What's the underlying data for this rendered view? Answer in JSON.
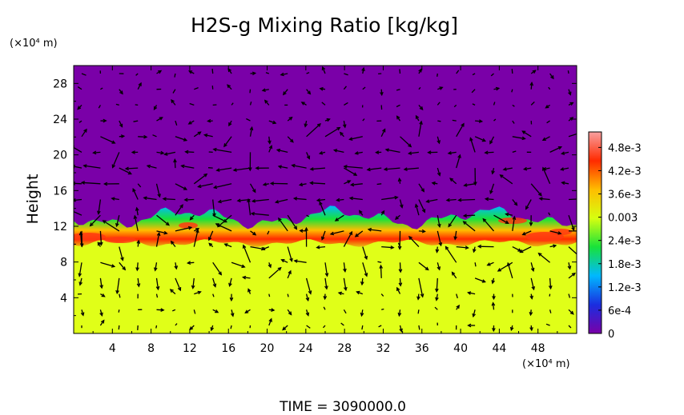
{
  "chart_data": {
    "type": "heatmap",
    "title": "H2S-g Mixing Ratio [kg/kg]",
    "ylabel": "Height",
    "yunit": "(×10⁴ m)",
    "xunit": "(×10⁴ m)",
    "footer": "TIME  =  3090000.0",
    "xlim": [
      0,
      52
    ],
    "ylim": [
      0,
      30
    ],
    "xticks": [
      4,
      8,
      12,
      16,
      20,
      24,
      28,
      32,
      36,
      40,
      44,
      48
    ],
    "yticks": [
      4,
      8,
      12,
      16,
      20,
      24,
      28
    ],
    "colorbar": {
      "min": 0,
      "max": 0.0052,
      "ticks": [
        {
          "value": 0.0048,
          "label": "4.8e-3"
        },
        {
          "value": 0.0042,
          "label": "4.2e-3"
        },
        {
          "value": 0.0036,
          "label": "3.6e-3"
        },
        {
          "value": 0.003,
          "label": "0.003"
        },
        {
          "value": 0.0024,
          "label": "2.4e-3"
        },
        {
          "value": 0.0018,
          "label": "1.8e-3"
        },
        {
          "value": 0.0012,
          "label": "1.2e-3"
        },
        {
          "value": 0.0006,
          "label": "6e-4"
        },
        {
          "value": 0,
          "label": "0"
        }
      ],
      "stops": [
        "#7a00a8",
        "#1a2ee0",
        "#00b8ff",
        "#18e23a",
        "#d6ff10",
        "#ffbd00",
        "#ff2a00",
        "#f8a0a0"
      ]
    },
    "fields": {
      "upper_layer_value": 0.0,
      "lower_layer_value": 0.0032,
      "interface_height_range": [
        10,
        13
      ],
      "upper_color": "#7a00a8",
      "lower_color": "#e0ff18"
    },
    "vector_field": {
      "description_grid_cols": 27,
      "description_grid_rows": 17
    }
  }
}
